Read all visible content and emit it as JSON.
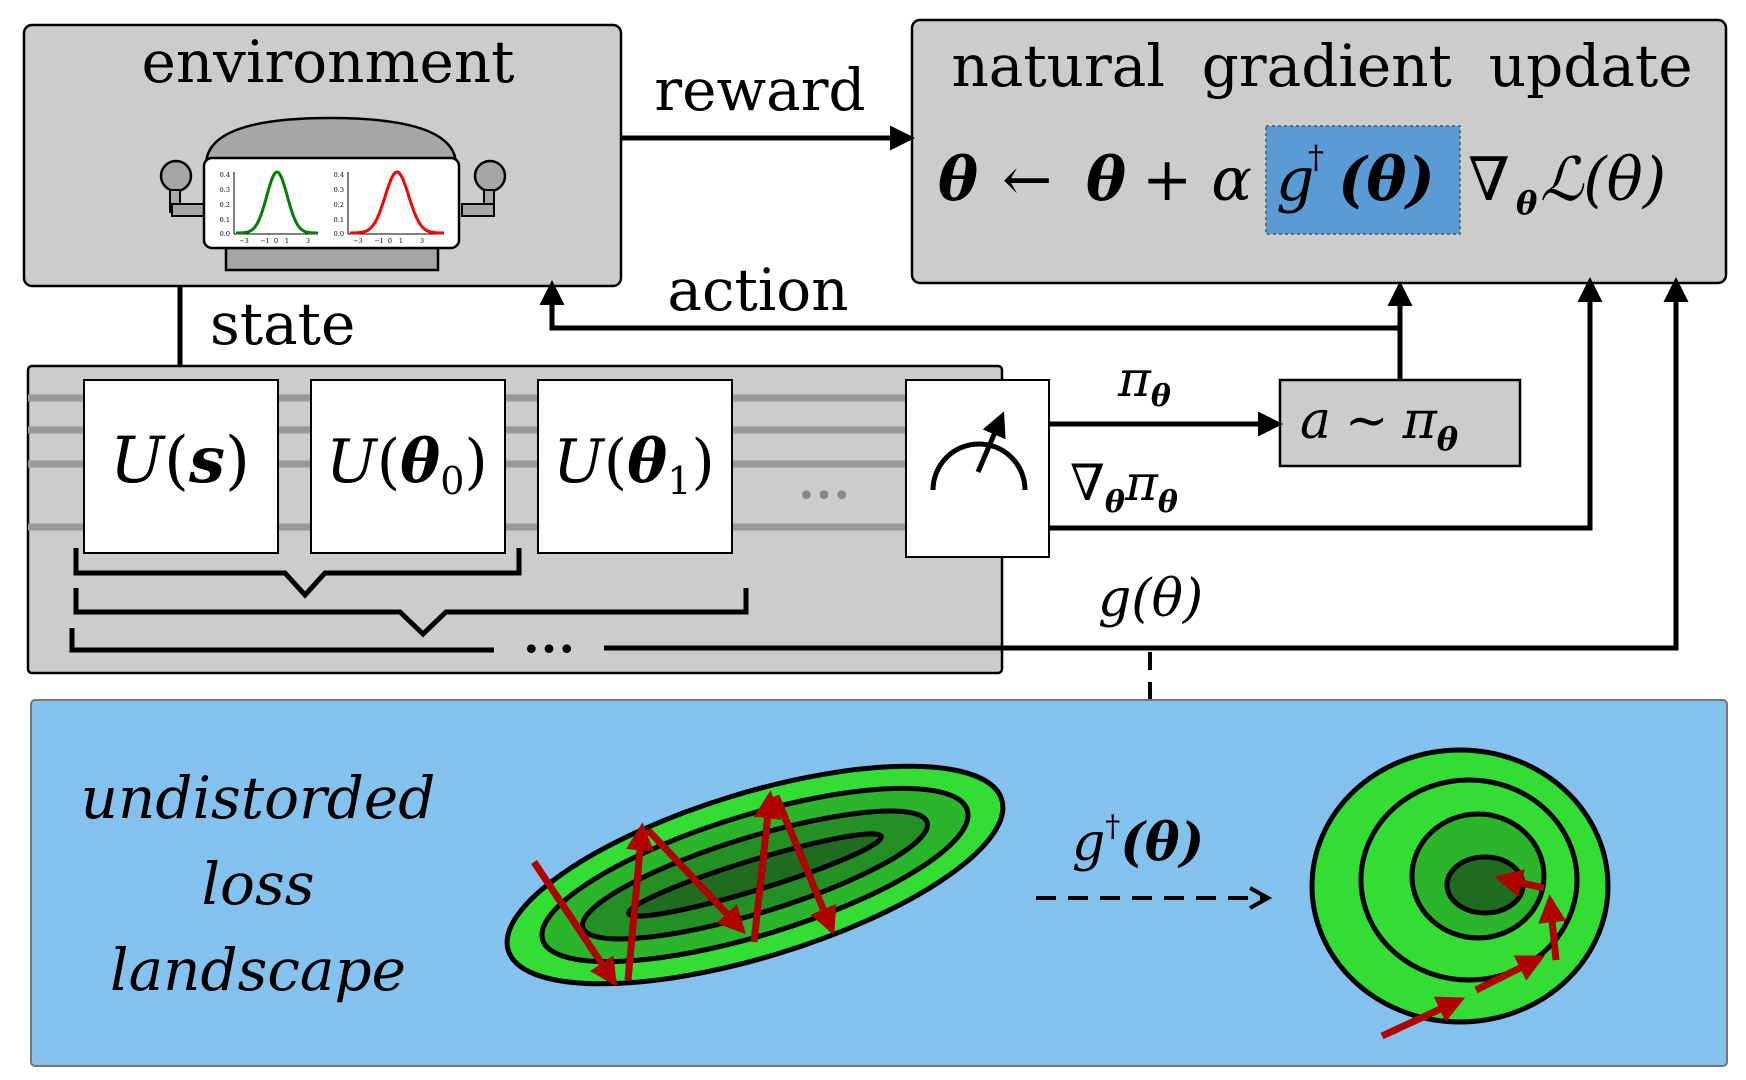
{
  "environment": {
    "title": "environment",
    "axis_tick_labels_y": [
      "0.4",
      "0.3",
      "0.2",
      "0.1",
      "0.0"
    ],
    "axis_tick_labels_x": [
      "−3",
      "−1",
      "0",
      "1",
      "3"
    ],
    "curve_colors": {
      "left": "#008000",
      "right": "#ff0000"
    }
  },
  "update_box": {
    "title": "natural  gradient  update",
    "eq": {
      "theta": "θ",
      "arrow": "←",
      "plus_alpha": "+ α",
      "g_dagger": "g",
      "dagger": "†",
      "g_arg": "(θ)",
      "nabla": "∇",
      "nabla_sub": "θ",
      "loss": "ℒ(θ)"
    },
    "highlight_color": "#5b9bd5"
  },
  "edges": {
    "reward": "reward",
    "action": "action",
    "state": "state",
    "pi": "π",
    "pi_sub": "θ",
    "grad_pi": "∇",
    "grad_pi_sub": "θ",
    "grad_pi_tail": "π",
    "grad_pi_tail_sub": "θ",
    "g_theta": "g(θ)",
    "g_dagger": "g",
    "g_dagger_sup": "†",
    "g_dagger_arg": "(θ)"
  },
  "circuit": {
    "gates": [
      {
        "U": "U",
        "arg_open": "(",
        "arg": "s",
        "arg_sub": "",
        "arg_close": ")"
      },
      {
        "U": "U",
        "arg_open": "(",
        "arg": "θ",
        "arg_sub": "0",
        "arg_close": ")"
      },
      {
        "U": "U",
        "arg_open": "(",
        "arg": "θ",
        "arg_sub": "1",
        "arg_close": ")"
      }
    ],
    "ellipsis": "•••",
    "sample_box": {
      "a": "a",
      "sim": "∼",
      "pi": "π",
      "pi_sub": "θ"
    }
  },
  "landscape": {
    "caption_lines": [
      "undistorded",
      "loss",
      "landscape"
    ],
    "background_color": "#85c1ed",
    "contour_colors": [
      "#33dd33",
      "#2bb52b",
      "#248f24",
      "#1f6b1f"
    ],
    "arrow_color": "#b00000"
  }
}
